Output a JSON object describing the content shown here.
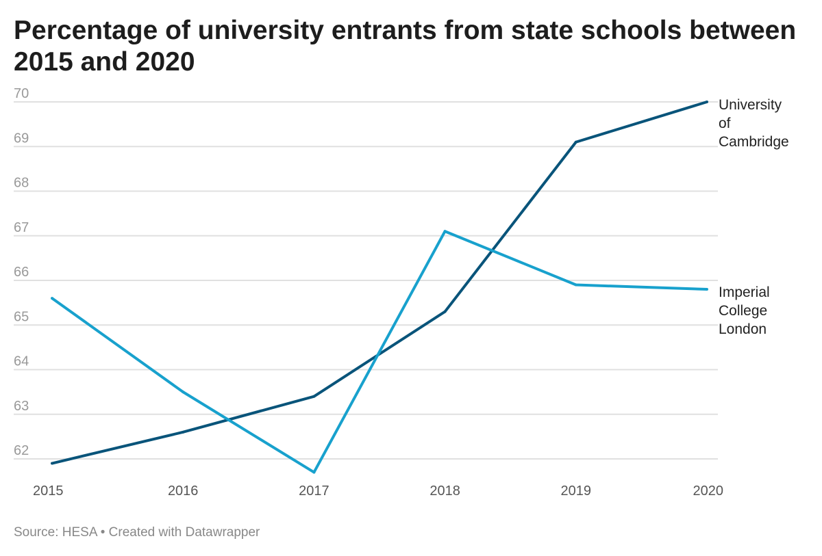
{
  "chart_data": {
    "type": "line",
    "title": "Percentage of university entrants from state schools between 2015 and 2020",
    "xlabel": "",
    "ylabel": "",
    "x": [
      "2015",
      "2016",
      "2017",
      "2018",
      "2019",
      "2020"
    ],
    "ylim": [
      62,
      70
    ],
    "yticks": [
      62,
      63,
      64,
      65,
      66,
      67,
      68,
      69,
      70
    ],
    "grid": true,
    "legend": "direct-labels-right",
    "series": [
      {
        "name": "University of Cambridge",
        "label_lines": [
          "University",
          "of",
          "Cambridge"
        ],
        "color": "#09547a",
        "values": [
          61.9,
          62.6,
          63.4,
          65.3,
          69.1,
          70.0
        ]
      },
      {
        "name": "Imperial College London",
        "label_lines": [
          "Imperial",
          "College",
          "London"
        ],
        "color": "#18a1cd",
        "values": [
          65.6,
          63.5,
          61.7,
          67.1,
          65.9,
          65.8
        ]
      }
    ]
  },
  "footer": {
    "source": "Source: HESA • Created with Datawrapper"
  }
}
